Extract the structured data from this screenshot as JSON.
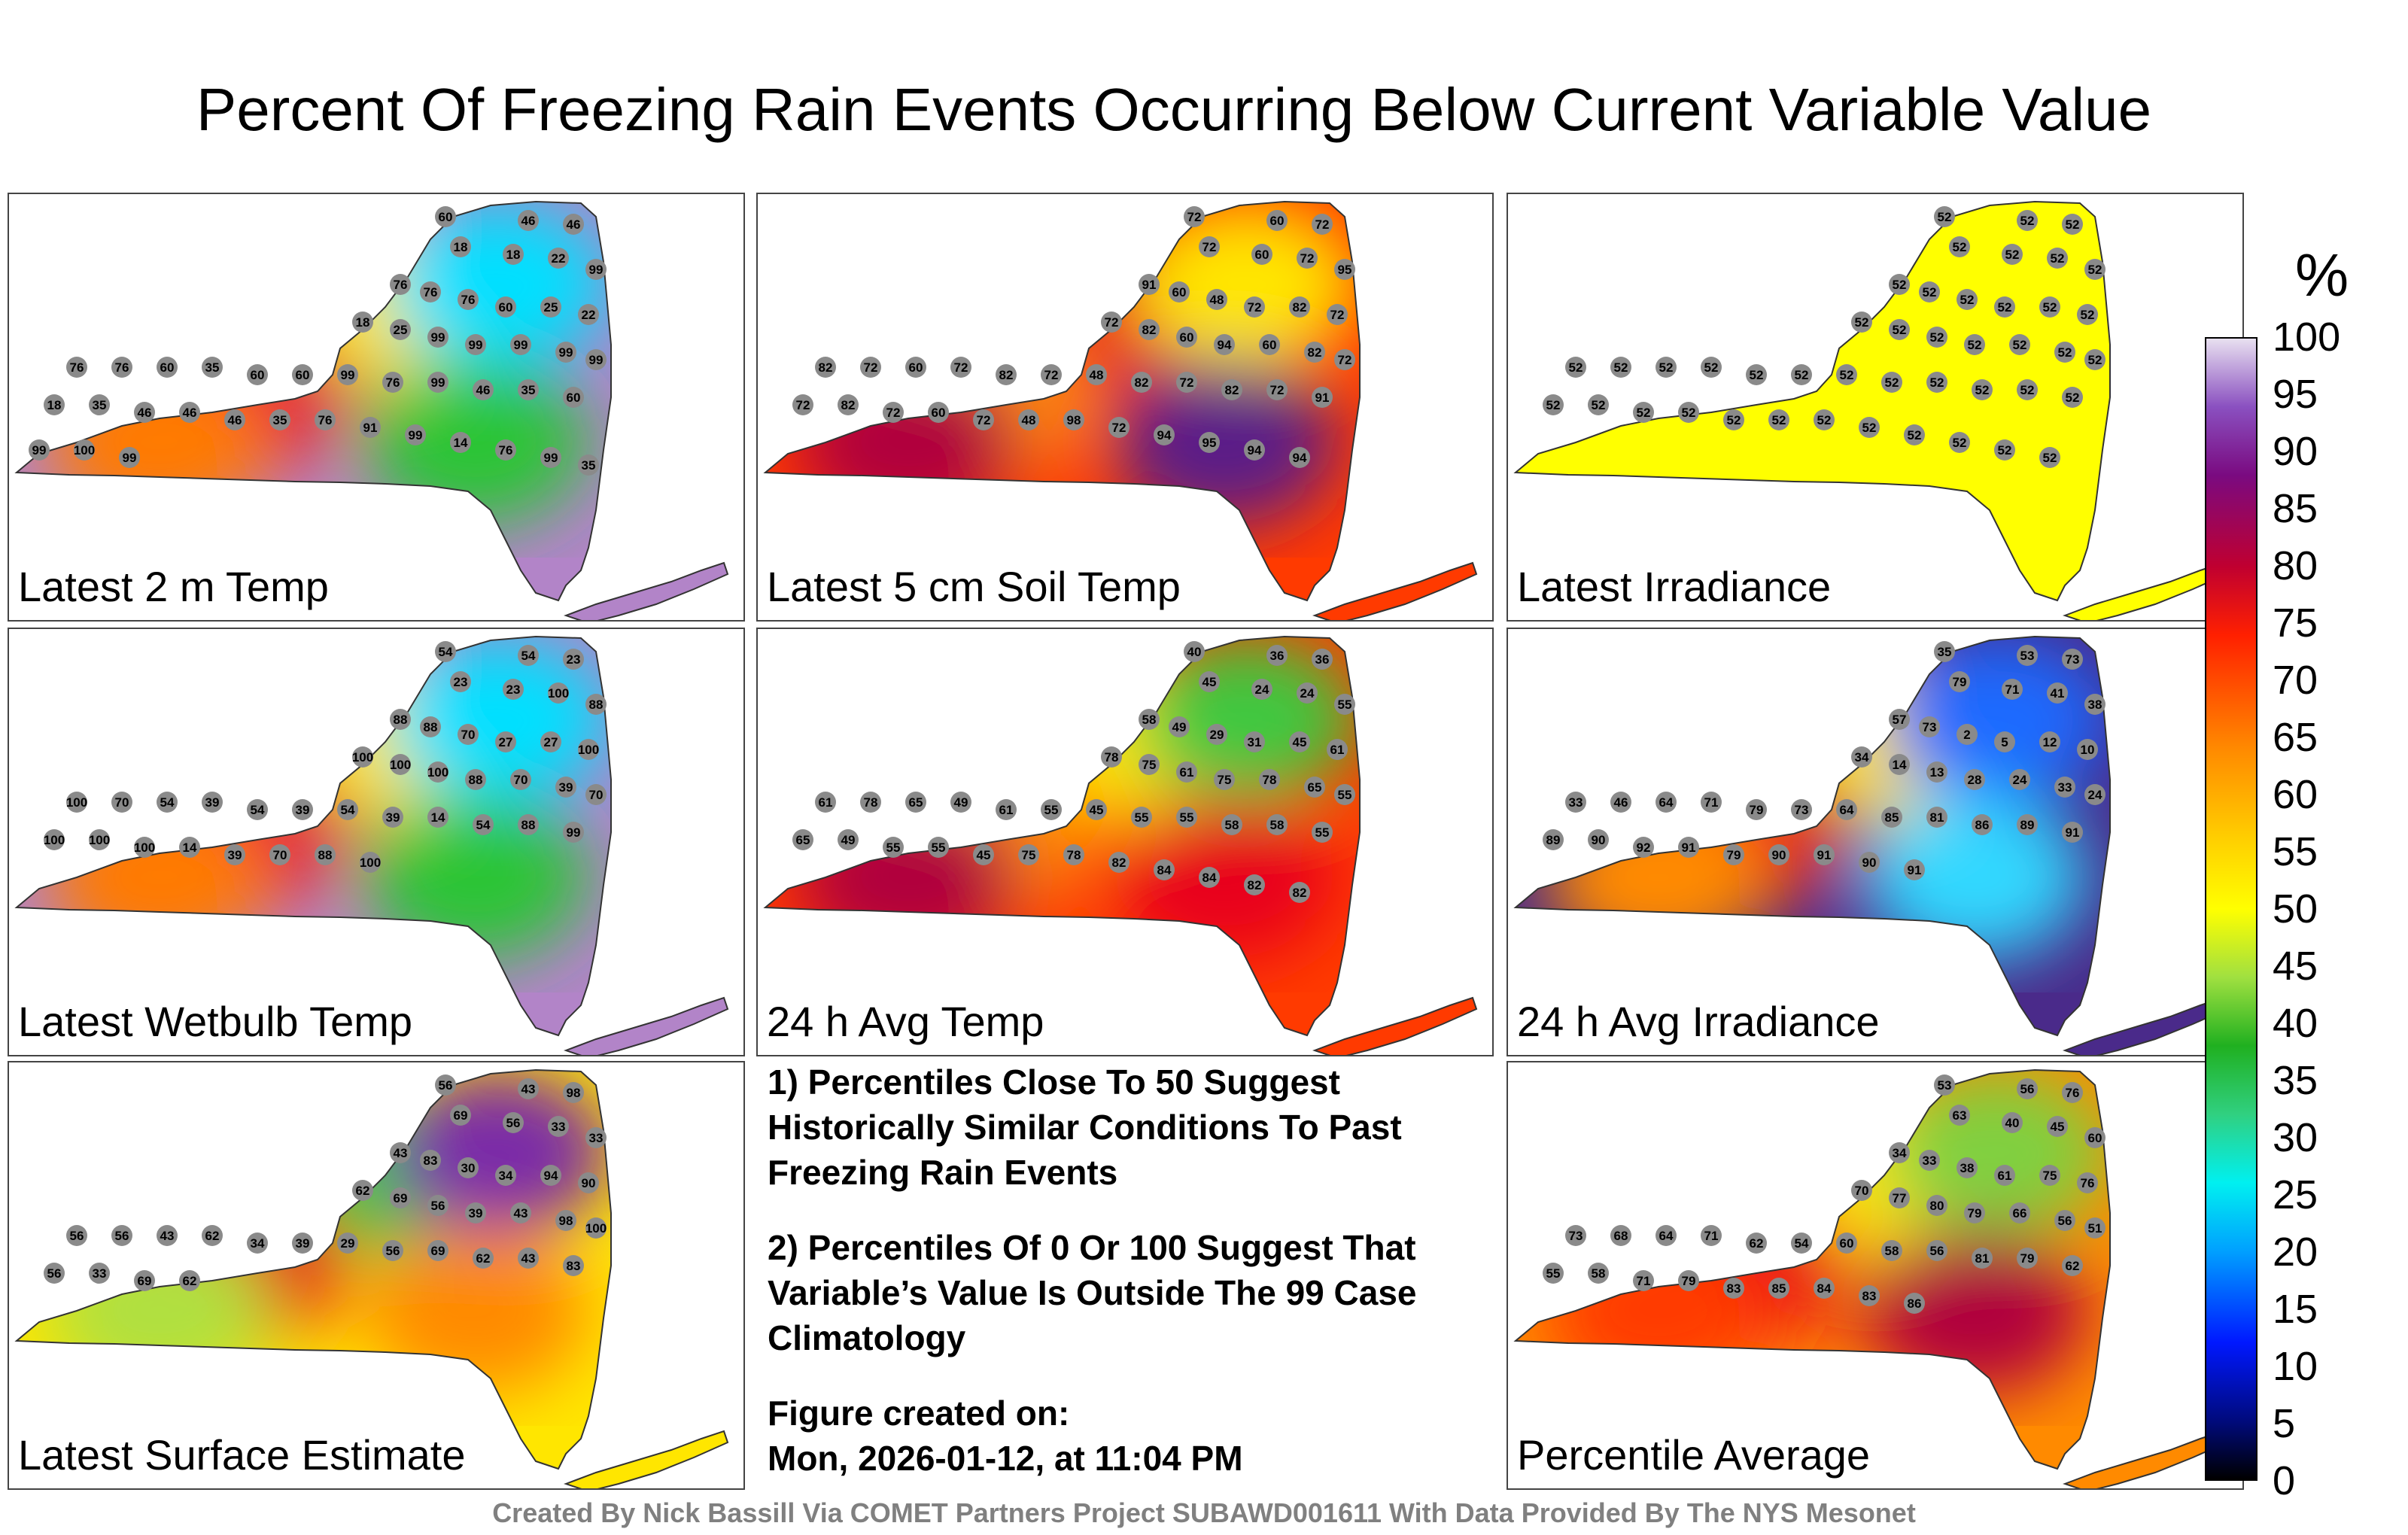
{
  "title": "Percent Of Freezing Rain Events Occurring Below Current Variable Value",
  "panels": [
    {
      "label": "Latest 2 m Temp",
      "colors": [
        "#b284c8",
        "#ffe600",
        "#00e0ff",
        "#e3003c",
        "#2bc534",
        "#ff7a00"
      ],
      "stations": [
        "60",
        "46",
        "46",
        "18",
        "18",
        "22",
        "99",
        "76",
        "76",
        "76",
        "60",
        "25",
        "22",
        "18",
        "25",
        "99",
        "99",
        "99",
        "99",
        "99",
        "76",
        "76",
        "60",
        "35",
        "60",
        "60",
        "99",
        "76",
        "99",
        "46",
        "35",
        "60",
        "18",
        "35",
        "46",
        "46",
        "46",
        "35",
        "76",
        "91",
        "99",
        "14",
        "76",
        "99",
        "35",
        "99",
        "100",
        "99"
      ]
    },
    {
      "label": "Latest 5 cm Soil Temp",
      "colors": [
        "#ff3a00",
        "#e8001a",
        "#ffe600",
        "#ff8a00",
        "#5a1a88",
        "#b0003c"
      ],
      "stations": [
        "72",
        "60",
        "72",
        "72",
        "60",
        "72",
        "95",
        "91",
        "60",
        "48",
        "72",
        "82",
        "72",
        "72",
        "82",
        "60",
        "94",
        "60",
        "82",
        "72",
        "82",
        "72",
        "60",
        "72",
        "82",
        "72",
        "48",
        "82",
        "72",
        "82",
        "72",
        "91",
        "72",
        "82",
        "72",
        "60",
        "72",
        "48",
        "98",
        "72",
        "94",
        "95",
        "94",
        "94"
      ]
    },
    {
      "label": "Latest Irradiance",
      "colors": [
        "#ffff00",
        "#ffff00",
        "#ffff00",
        "#ffff00",
        "#ffff00",
        "#ffff00"
      ],
      "stations": [
        "52",
        "52",
        "52",
        "52",
        "52",
        "52",
        "52",
        "52",
        "52",
        "52",
        "52",
        "52",
        "52",
        "52",
        "52",
        "52",
        "52",
        "52",
        "52",
        "52",
        "52",
        "52",
        "52",
        "52",
        "52",
        "52",
        "52",
        "52",
        "52",
        "52",
        "52",
        "52",
        "52",
        "52",
        "52",
        "52",
        "52",
        "52",
        "52",
        "52",
        "52",
        "52",
        "52",
        "52"
      ]
    },
    {
      "label": "Latest Wetbulb Temp",
      "colors": [
        "#b284c8",
        "#ffe600",
        "#00e0ff",
        "#e3003c",
        "#2bc534",
        "#ff7a00"
      ],
      "stations": [
        "54",
        "54",
        "23",
        "23",
        "23",
        "100",
        "88",
        "88",
        "88",
        "70",
        "27",
        "27",
        "100",
        "100",
        "100",
        "100",
        "88",
        "70",
        "39",
        "70",
        "100",
        "70",
        "54",
        "39",
        "54",
        "39",
        "54",
        "39",
        "14",
        "54",
        "88",
        "99",
        "100",
        "100",
        "100",
        "14",
        "39",
        "70",
        "88",
        "100"
      ]
    },
    {
      "label": "24 h Avg Temp",
      "colors": [
        "#ff3a00",
        "#ffe600",
        "#40c840",
        "#ff8a00",
        "#e8001a",
        "#b0003c"
      ],
      "stations": [
        "40",
        "36",
        "36",
        "45",
        "24",
        "24",
        "55",
        "58",
        "49",
        "29",
        "31",
        "45",
        "61",
        "78",
        "75",
        "61",
        "75",
        "78",
        "65",
        "55",
        "61",
        "78",
        "65",
        "49",
        "61",
        "55",
        "45",
        "55",
        "55",
        "58",
        "58",
        "55",
        "65",
        "49",
        "55",
        "55",
        "45",
        "75",
        "78",
        "82",
        "84",
        "84",
        "82",
        "82"
      ]
    },
    {
      "label": "24 h Avg Irradiance",
      "colors": [
        "#4a2a8a",
        "#ffe600",
        "#1a6aff",
        "#e8001a",
        "#30d8ff",
        "#ff8a00"
      ],
      "stations": [
        "35",
        "53",
        "73",
        "79",
        "71",
        "41",
        "38",
        "57",
        "73",
        "2",
        "5",
        "12",
        "10",
        "34",
        "14",
        "13",
        "28",
        "24",
        "33",
        "24",
        "33",
        "46",
        "64",
        "71",
        "79",
        "73",
        "64",
        "85",
        "81",
        "86",
        "89",
        "91",
        "89",
        "90",
        "92",
        "91",
        "79",
        "90",
        "91",
        "90",
        "91"
      ]
    },
    {
      "label": "Latest Surface Estimate",
      "colors": [
        "#ffe600",
        "#40c840",
        "#7a2aa8",
        "#e8001a",
        "#ff8a00",
        "#b0e040"
      ],
      "stations": [
        "56",
        "43",
        "98",
        "69",
        "56",
        "33",
        "33",
        "43",
        "83",
        "30",
        "34",
        "94",
        "90",
        "62",
        "69",
        "56",
        "39",
        "43",
        "98",
        "100",
        "56",
        "56",
        "43",
        "62",
        "34",
        "39",
        "29",
        "56",
        "69",
        "62",
        "43",
        "83",
        "56",
        "33",
        "69",
        "62"
      ]
    },
    {
      "label": "Percentile Average",
      "colors": [
        "#ff8a00",
        "#ffe600",
        "#80d040",
        "#e8001a",
        "#b0003c",
        "#ff3a00"
      ],
      "stations": [
        "53",
        "56",
        "76",
        "63",
        "40",
        "45",
        "60",
        "34",
        "33",
        "38",
        "61",
        "75",
        "76",
        "70",
        "77",
        "80",
        "79",
        "66",
        "56",
        "51",
        "73",
        "68",
        "64",
        "71",
        "62",
        "54",
        "60",
        "58",
        "56",
        "81",
        "79",
        "62",
        "55",
        "58",
        "71",
        "79",
        "83",
        "85",
        "84",
        "83",
        "86"
      ]
    }
  ],
  "notes": {
    "note1": "1) Percentiles Close To 50 Suggest Historically Similar Conditions To Past Freezing Rain Events",
    "note2": "2) Percentiles Of 0 Or 100 Suggest That Variable’s Value Is Outside The 99 Case Climatology",
    "created_label": "Figure created on:",
    "created_date": "Mon, 2026-01-12, at 11:04 PM"
  },
  "colorbar": {
    "unit": "%",
    "ticks": [
      "100",
      "95",
      "90",
      "85",
      "80",
      "75",
      "70",
      "65",
      "60",
      "55",
      "50",
      "45",
      "40",
      "35",
      "30",
      "25",
      "20",
      "15",
      "10",
      "5",
      "0"
    ]
  },
  "footer": "Created By Nick Bassill Via COMET Partners Project SUBAWD001611 With Data Provided By The NYS Mesonet"
}
